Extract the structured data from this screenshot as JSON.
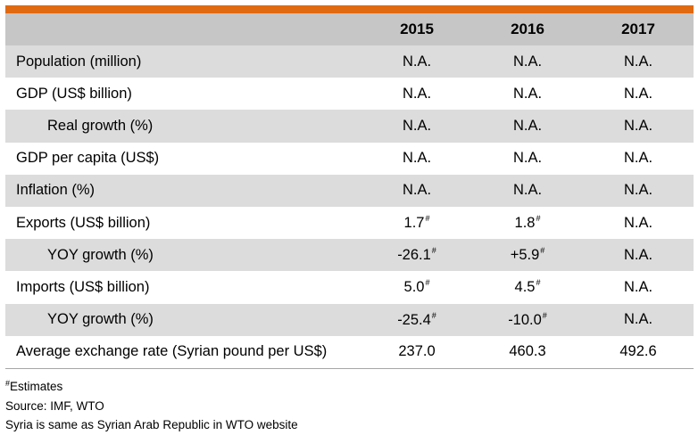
{
  "header": {
    "label": "",
    "years": [
      "2015",
      "2016",
      "2017"
    ]
  },
  "rows": [
    {
      "label": "Population (million)",
      "values": [
        "N.A.",
        "N.A.",
        "N.A."
      ],
      "marks": [
        "",
        "",
        ""
      ]
    },
    {
      "label": "GDP (US$ billion)",
      "values": [
        "N.A.",
        "N.A.",
        "N.A."
      ],
      "marks": [
        "",
        "",
        ""
      ]
    },
    {
      "label": "Real growth (%)",
      "values": [
        "N.A.",
        "N.A.",
        "N.A."
      ],
      "marks": [
        "",
        "",
        ""
      ]
    },
    {
      "label": "GDP per capita (US$)",
      "values": [
        "N.A.",
        "N.A.",
        "N.A."
      ],
      "marks": [
        "",
        "",
        ""
      ]
    },
    {
      "label": "Inflation (%)",
      "values": [
        "N.A.",
        "N.A.",
        "N.A."
      ],
      "marks": [
        "",
        "",
        ""
      ]
    },
    {
      "label": "Exports (US$ billion)",
      "values": [
        "1.7",
        "1.8",
        "N.A."
      ],
      "marks": [
        "#",
        "#",
        ""
      ]
    },
    {
      "label": "YOY growth (%)",
      "values": [
        "-26.1",
        "+5.9",
        "N.A."
      ],
      "marks": [
        "#",
        "#",
        ""
      ]
    },
    {
      "label": "Imports (US$ billion)",
      "values": [
        "5.0",
        "4.5",
        "N.A."
      ],
      "marks": [
        "#",
        "#",
        ""
      ]
    },
    {
      "label": "YOY growth (%)",
      "values": [
        "-25.4",
        "-10.0",
        "N.A."
      ],
      "marks": [
        "#",
        "#",
        ""
      ]
    },
    {
      "label": "Average exchange rate (Syrian pound per US$)",
      "values": [
        "237.0",
        "460.3",
        "492.6"
      ],
      "marks": [
        "",
        "",
        ""
      ]
    }
  ],
  "notes": {
    "estimates_mark": "#",
    "estimates": "Estimates",
    "source": "Source: IMF, WTO",
    "remark": "Syria is same as Syrian Arab Republic in WTO website"
  },
  "colors": {
    "accent_bar": "#e06a12",
    "header_bg": "#c6c6c6",
    "shaded_row_bg": "#dcdcdc"
  }
}
